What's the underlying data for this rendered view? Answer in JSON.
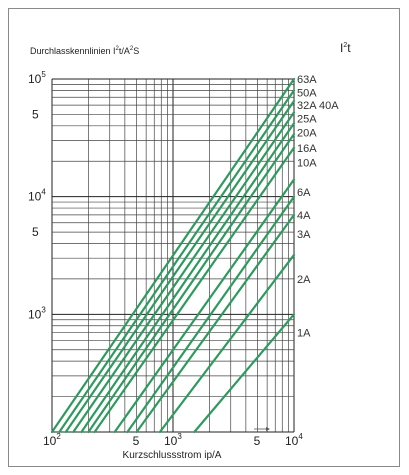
{
  "chart_data": {
    "type": "line",
    "title": "Durchlasskennlinien I²t/A²S",
    "title_parts": {
      "a": "Durchlasskennlinien  I",
      "sup1": "2",
      "b": "t/A",
      "sup2": "2",
      "c": "S"
    },
    "corner_label_parts": {
      "a": "I",
      "sup": "2",
      "b": "t"
    },
    "xlabel": "Kurzschlussstrom ip/A",
    "x_scale": "log",
    "y_scale": "log",
    "xlim": [
      100,
      10000
    ],
    "ylim": [
      100,
      100000
    ],
    "grid": true,
    "line_color": "#2e9a5e",
    "x_ticks": [
      {
        "value": 100,
        "base": "10",
        "exp": "2"
      },
      {
        "value": 500,
        "base": "5",
        "exp": ""
      },
      {
        "value": 1000,
        "base": "10",
        "exp": "3"
      },
      {
        "value": 5000,
        "base": "5",
        "exp": ""
      },
      {
        "value": 10000,
        "base": "10",
        "exp": "4"
      }
    ],
    "y_ticks": [
      {
        "value": 1000,
        "base": "10",
        "exp": "3"
      },
      {
        "value": 5000,
        "base": "5",
        "exp": ""
      },
      {
        "value": 10000,
        "base": "10",
        "exp": "4"
      },
      {
        "value": 50000,
        "base": "5",
        "exp": ""
      },
      {
        "value": 100000,
        "base": "10",
        "exp": "5"
      }
    ],
    "series": [
      {
        "name": "63A",
        "points": [
          [
            100,
            100
          ],
          [
            10000,
            100000
          ]
        ],
        "label_y": 100000
      },
      {
        "name": "50A",
        "points": [
          [
            115,
            100
          ],
          [
            10000,
            80000
          ]
        ],
        "label_y": 77000
      },
      {
        "name": "32A 40A",
        "points": [
          [
            130,
            100
          ],
          [
            10000,
            65000
          ]
        ],
        "label_y": 60000
      },
      {
        "name": "25A",
        "points": [
          [
            150,
            100
          ],
          [
            10000,
            52000
          ]
        ],
        "label_y": 46000
      },
      {
        "name": "20A",
        "points": [
          [
            175,
            100
          ],
          [
            10000,
            42000
          ]
        ],
        "label_y": 35000
      },
      {
        "name": "16A",
        "points": [
          [
            200,
            100
          ],
          [
            10000,
            34000
          ]
        ],
        "label_y": 26000
      },
      {
        "name": "10A",
        "points": [
          [
            225,
            100
          ],
          [
            10000,
            26000
          ]
        ],
        "label_y": 19500
      },
      {
        "name": "6A",
        "points": [
          [
            330,
            100
          ],
          [
            10000,
            14000
          ]
        ],
        "label_y": 11000
      },
      {
        "name": "4A",
        "points": [
          [
            420,
            100
          ],
          [
            10000,
            10000
          ]
        ],
        "label_y": 7000
      },
      {
        "name": "3A",
        "points": [
          [
            500,
            100
          ],
          [
            10000,
            7000
          ]
        ],
        "label_y": 4800
      },
      {
        "name": "2A",
        "points": [
          [
            780,
            100
          ],
          [
            10000,
            3200
          ]
        ],
        "label_y": 2000
      },
      {
        "name": "1A",
        "points": [
          [
            1500,
            100
          ],
          [
            10000,
            1000
          ]
        ],
        "label_y": 700
      }
    ]
  }
}
